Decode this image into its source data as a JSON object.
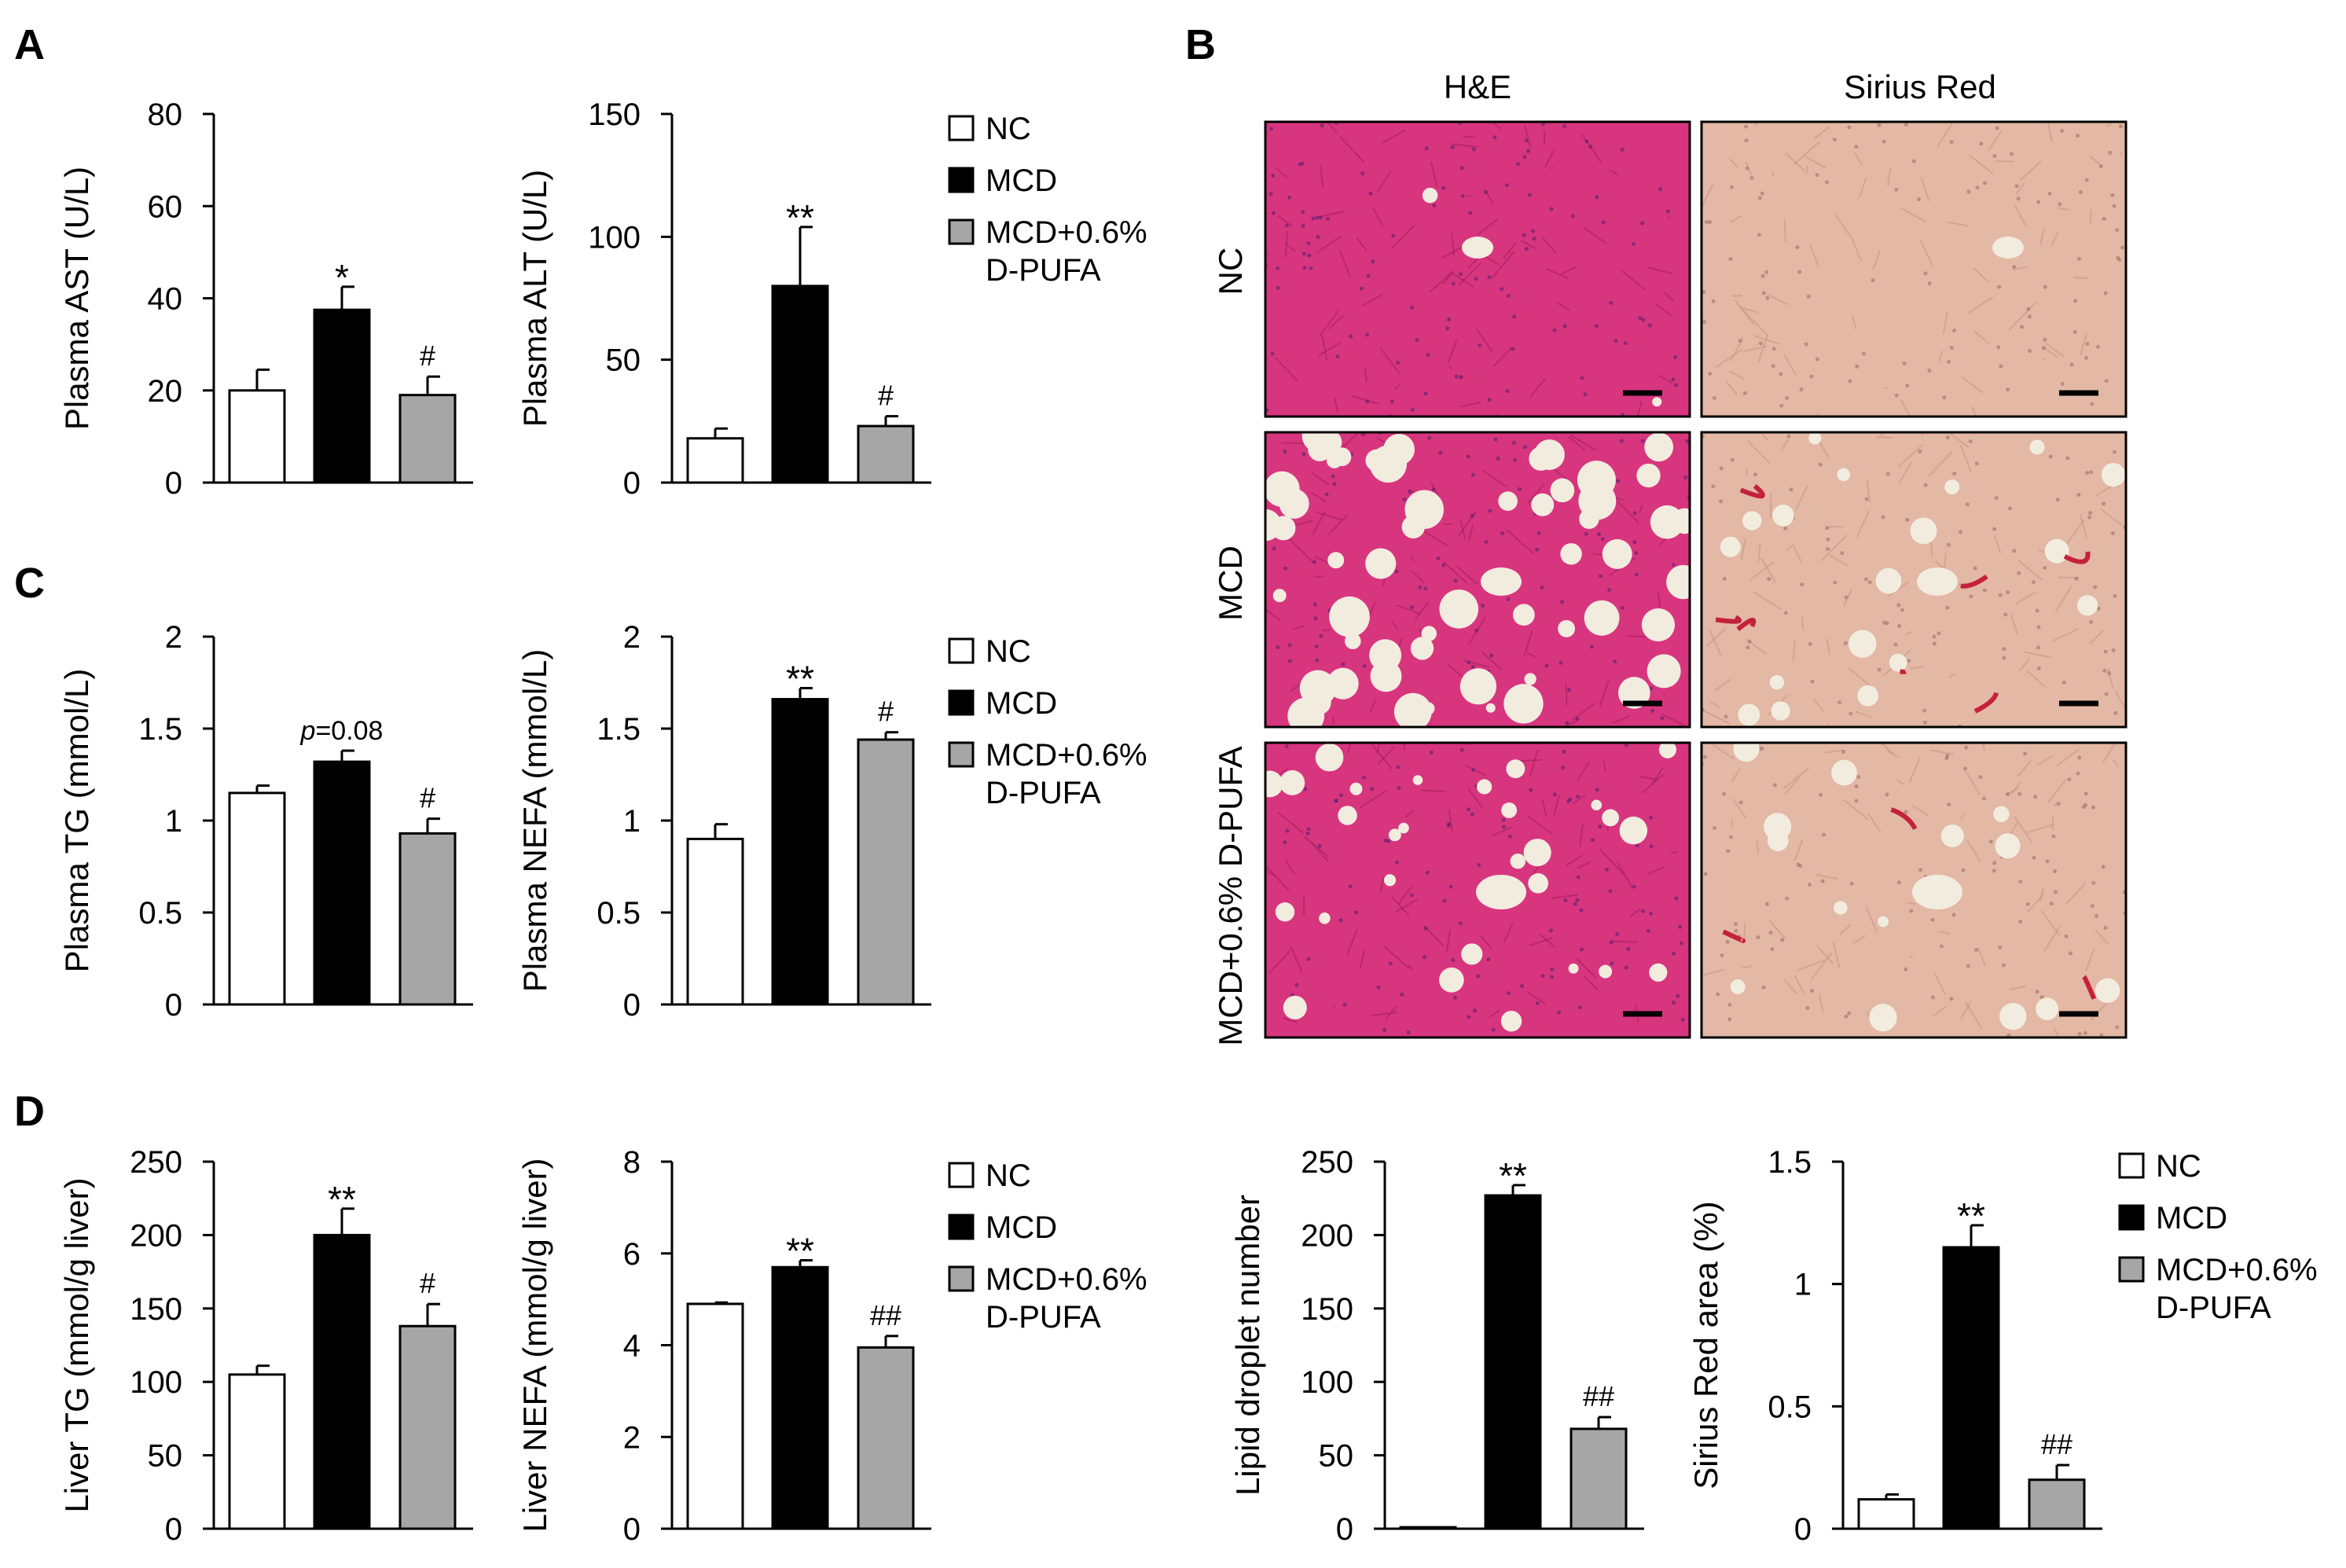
{
  "figure": {
    "panel_letters": {
      "A": "A",
      "B": "B",
      "C": "C",
      "D": "D"
    },
    "histology": {
      "col_headers": [
        "H&E",
        "Sirius Red"
      ],
      "row_labels": [
        "NC",
        "MCD",
        "MCD+0.6% D-PUFA"
      ],
      "colors": {
        "he_base": "#d8357f",
        "he_dark": "#9c1d5a",
        "sr_base": "#e3b8a4",
        "sr_fiber": "#c4213c",
        "droplet": "#f2ecdf"
      }
    },
    "legend": {
      "entries": [
        "NC",
        "MCD",
        "MCD+0.6%",
        "D-PUFA"
      ],
      "colors": {
        "NC": "#ffffff",
        "MCD": "#000000",
        "D-PUFA": "#a6a6a6"
      }
    }
  },
  "chart_data": [
    {
      "id": "ast",
      "type": "bar",
      "categories": [
        "NC",
        "MCD",
        "MCD+0.6% D-PUFA"
      ],
      "values": [
        20,
        37.5,
        19
      ],
      "errors": [
        4.5,
        5,
        4
      ],
      "annotations": [
        "",
        "*",
        "#"
      ],
      "ylabel": "Plasma AST (U/L)",
      "ylim": [
        0,
        80
      ],
      "yticks": [
        0,
        20,
        40,
        60,
        80
      ],
      "ytick_labels": [
        "0",
        "20",
        "40",
        "60",
        "80"
      ]
    },
    {
      "id": "alt",
      "type": "bar",
      "categories": [
        "NC",
        "MCD",
        "MCD+0.6% D-PUFA"
      ],
      "values": [
        18,
        80,
        23
      ],
      "errors": [
        4,
        24,
        4
      ],
      "annotations": [
        "",
        "**",
        "#"
      ],
      "ylabel": "Plasma ALT (U/L)",
      "ylim": [
        0,
        150
      ],
      "yticks": [
        0,
        50,
        100,
        150
      ],
      "ytick_labels": [
        "0",
        "50",
        "100",
        "150"
      ]
    },
    {
      "id": "tg",
      "type": "bar",
      "categories": [
        "NC",
        "MCD",
        "MCD+0.6% D-PUFA"
      ],
      "values": [
        1.15,
        1.32,
        0.93
      ],
      "errors": [
        0.04,
        0.06,
        0.08
      ],
      "annotations": [
        "",
        "p=0.08",
        "#"
      ],
      "ylabel": "Plasma TG (mmol/L)",
      "ylim": [
        0,
        2
      ],
      "yticks": [
        0,
        0.5,
        1,
        1.5,
        2
      ],
      "ytick_labels": [
        "0",
        "0.5",
        "1",
        "1.5",
        "2"
      ]
    },
    {
      "id": "nefa",
      "type": "bar",
      "categories": [
        "NC",
        "MCD",
        "MCD+0.6% D-PUFA"
      ],
      "values": [
        0.9,
        1.66,
        1.44
      ],
      "errors": [
        0.08,
        0.06,
        0.04
      ],
      "annotations": [
        "",
        "**",
        "#"
      ],
      "ylabel": "Plasma NEFA (mmol/L)",
      "ylim": [
        0,
        2
      ],
      "yticks": [
        0,
        0.5,
        1,
        1.5,
        2
      ],
      "ytick_labels": [
        "0",
        "0.5",
        "1",
        "1.5",
        "2"
      ]
    },
    {
      "id": "ltg",
      "type": "bar",
      "categories": [
        "NC",
        "MCD",
        "MCD+0.6% D-PUFA"
      ],
      "values": [
        105,
        200,
        138
      ],
      "errors": [
        6,
        18,
        15
      ],
      "annotations": [
        "",
        "**",
        "#"
      ],
      "ylabel": "Liver TG (mmol/g liver)",
      "ylim": [
        0,
        250
      ],
      "yticks": [
        0,
        50,
        100,
        150,
        200,
        250
      ],
      "ytick_labels": [
        "0",
        "50",
        "100",
        "150",
        "200",
        "250"
      ]
    },
    {
      "id": "lnefa",
      "type": "bar",
      "categories": [
        "NC",
        "MCD",
        "MCD+0.6% D-PUFA"
      ],
      "values": [
        4.9,
        5.7,
        3.95
      ],
      "errors": [
        0.03,
        0.15,
        0.25
      ],
      "annotations": [
        "",
        "**",
        "##"
      ],
      "ylabel": "Liver NEFA (mmol/g liver)",
      "ylim": [
        0,
        8
      ],
      "yticks": [
        0,
        2,
        4,
        6,
        8
      ],
      "ytick_labels": [
        "0",
        "2",
        "4",
        "6",
        "8"
      ]
    },
    {
      "id": "ld",
      "type": "bar",
      "categories": [
        "NC",
        "MCD",
        "MCD+0.6% D-PUFA"
      ],
      "values": [
        1,
        227,
        68
      ],
      "errors": [
        0,
        7,
        8
      ],
      "annotations": [
        "",
        "**",
        "##"
      ],
      "ylabel": "Lipid droplet number",
      "ylim": [
        0,
        250
      ],
      "yticks": [
        0,
        50,
        100,
        150,
        200,
        250
      ],
      "ytick_labels": [
        "0",
        "50",
        "100",
        "150",
        "200",
        "250"
      ]
    },
    {
      "id": "sr",
      "type": "bar",
      "categories": [
        "NC",
        "MCD",
        "MCD+0.6% D-PUFA"
      ],
      "values": [
        0.12,
        1.15,
        0.2
      ],
      "errors": [
        0.02,
        0.09,
        0.06
      ],
      "annotations": [
        "",
        "**",
        "##"
      ],
      "ylabel": "Sirius Red area (%)",
      "ylim": [
        0,
        1.5
      ],
      "yticks": [
        0,
        0.5,
        1,
        1.5
      ],
      "ytick_labels": [
        "0",
        "0.5",
        "1",
        "1.5"
      ]
    }
  ]
}
